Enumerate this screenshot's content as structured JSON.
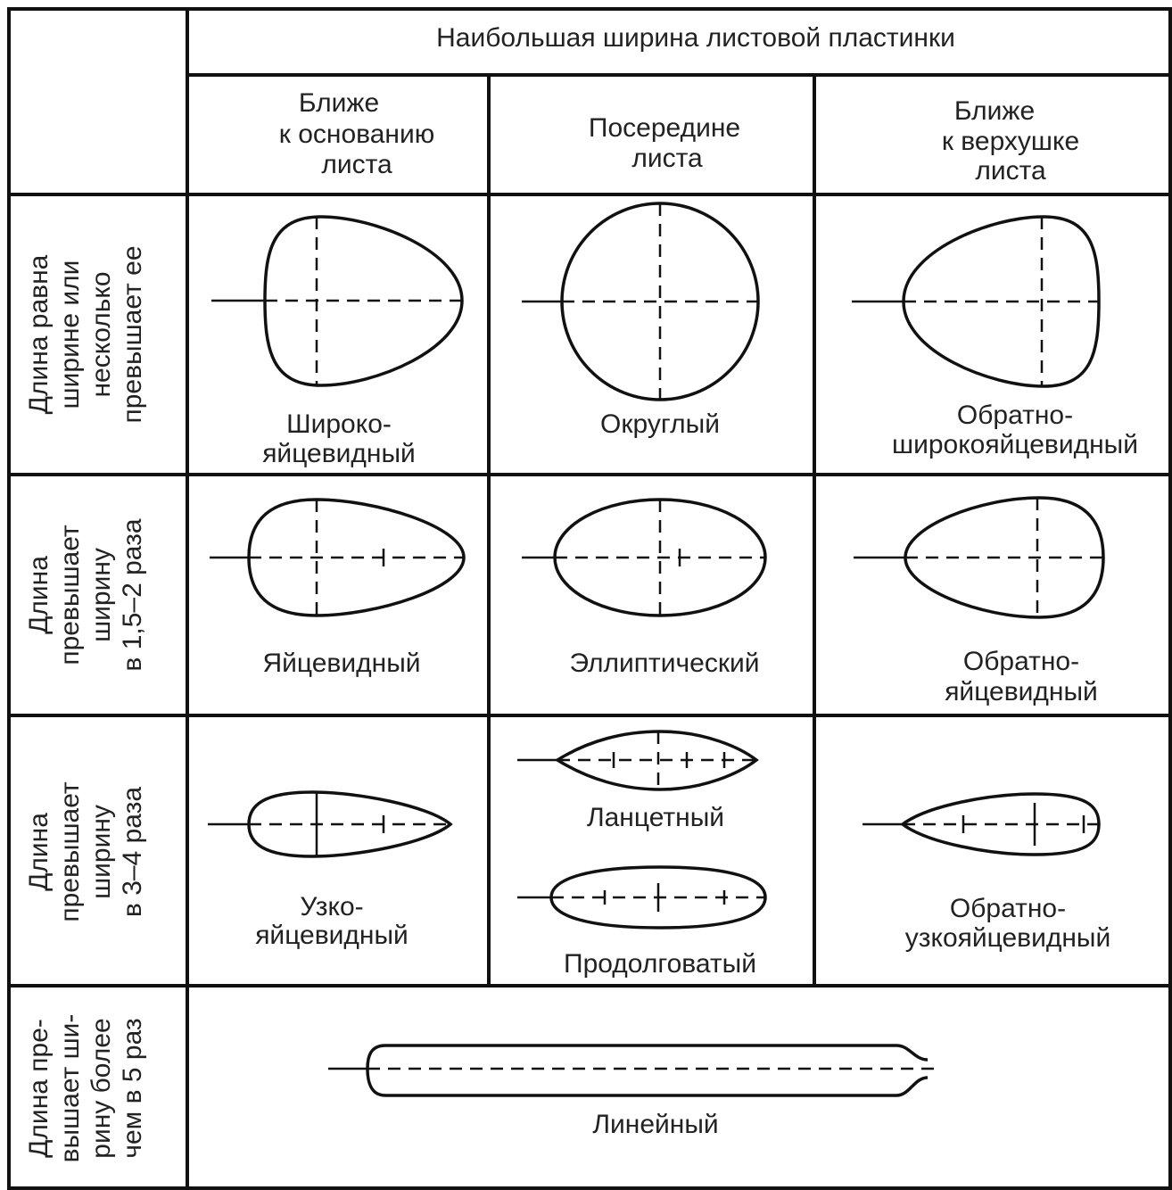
{
  "header": {
    "title": "Наибольшая ширина листовой пластинки"
  },
  "columns": [
    [
      "Ближе",
      "к основанию",
      "листа"
    ],
    [
      "Посередине",
      "листа"
    ],
    [
      "Ближе",
      "к верхушке",
      "листа"
    ]
  ],
  "rows": [
    {
      "label": [
        "Длина равна",
        "ширине или",
        "несколько",
        "превышает ее"
      ],
      "cells": [
        [
          [
            "Широко-",
            "яйцевидный"
          ]
        ],
        [
          [
            "Округлый"
          ]
        ],
        [
          [
            "Обратно-",
            "широкояйцевидный"
          ]
        ]
      ]
    },
    {
      "label": [
        "Длина",
        "превышает",
        "ширину",
        "в 1,5–2 раза"
      ],
      "cells": [
        [
          [
            "Яйцевидный"
          ]
        ],
        [
          [
            "Эллиптический"
          ]
        ],
        [
          [
            "Обратно-",
            "яйцевидный"
          ]
        ]
      ]
    },
    {
      "label": [
        "Длина",
        "превышает",
        "ширину",
        "в 3–4 раза"
      ],
      "cells": [
        [
          [
            "Узко-",
            "яйцевидный"
          ]
        ],
        [
          [
            "Ланцетный"
          ],
          [
            "Продолговатый"
          ]
        ],
        [
          [
            "Обратно-",
            "узкояйцевидный"
          ]
        ]
      ]
    },
    {
      "label": [
        "Длина пре-",
        "вышает ши-",
        "рину более",
        "чем в 5 раз"
      ],
      "cells": [
        [
          [
            "Линейный"
          ]
        ]
      ]
    }
  ]
}
